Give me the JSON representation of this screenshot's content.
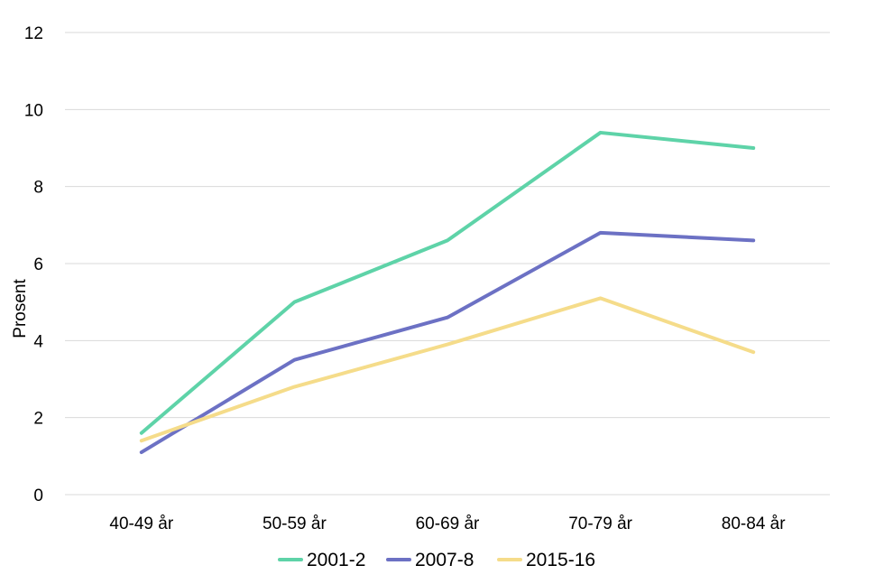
{
  "chart_data": {
    "type": "line",
    "categories": [
      "40-49 år",
      "50-59 år",
      "60-69 år",
      "70-79 år",
      "80-84 år"
    ],
    "series": [
      {
        "name": "2001-2",
        "color": "#5ed3a8",
        "values": [
          1.6,
          5.0,
          6.6,
          9.4,
          9.0
        ]
      },
      {
        "name": "2007-8",
        "color": "#6c71c4",
        "values": [
          1.1,
          3.5,
          4.6,
          6.8,
          6.6
        ]
      },
      {
        "name": "2015-16",
        "color": "#f5dc8a",
        "values": [
          1.4,
          2.8,
          3.9,
          5.1,
          3.7
        ]
      }
    ],
    "ylabel": "Prosent",
    "ylim": [
      0,
      12
    ],
    "yticks": [
      0,
      2,
      4,
      6,
      8,
      10,
      12
    ],
    "grid": true,
    "legend_position": "bottom"
  }
}
